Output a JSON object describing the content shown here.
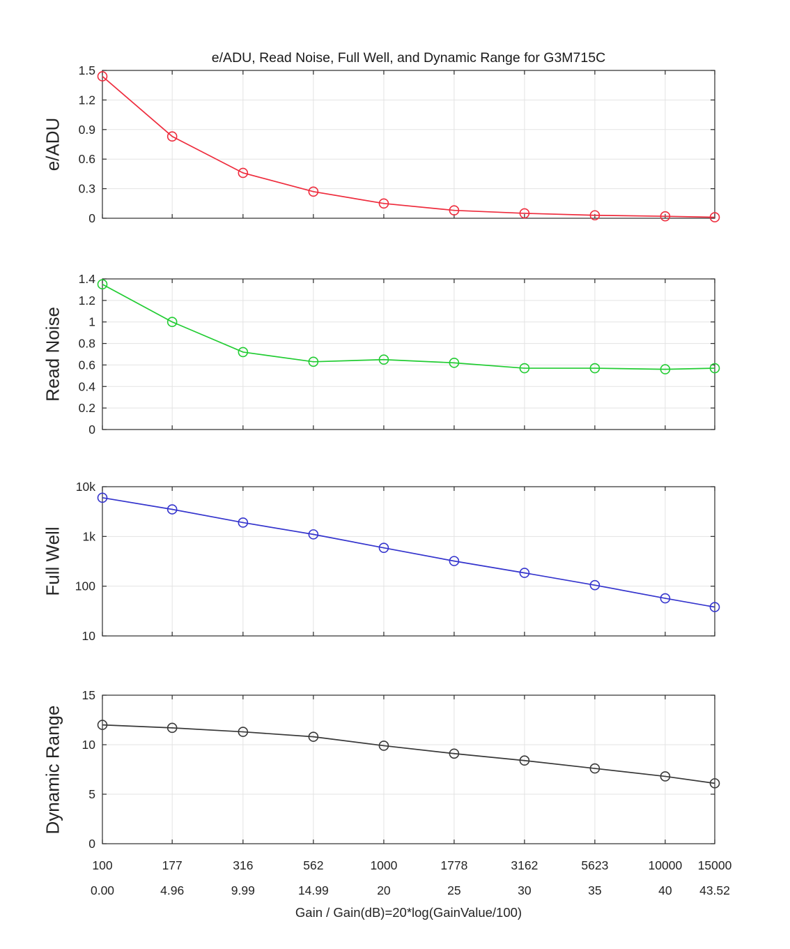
{
  "figure": {
    "background": "#ffffff",
    "axis_color": "#2b2b2b",
    "grid_color": "#e3e3e3",
    "text_color": "#242424"
  },
  "chart_data": {
    "type": "line",
    "title": "e/ADU, Read Noise, Full Well, and Dynamic Range for G3M715C",
    "xlabel": "Gain / Gain(dB)=20*log(GainValue/100)",
    "x_scale": "log",
    "grid": true,
    "legend": "none",
    "x": [
      100,
      177,
      316,
      562,
      1000,
      1778,
      3162,
      5623,
      10000,
      15000
    ],
    "x_tick_labels": [
      "100",
      "177",
      "316",
      "562",
      "1000",
      "1778",
      "3162",
      "5623",
      "10000",
      "15000"
    ],
    "x_tick_labels_db": [
      "0.00",
      "4.96",
      "9.99",
      "14.99",
      "20",
      "25",
      "30",
      "35",
      "40",
      "43.52"
    ],
    "subplots": [
      {
        "name": "e-per-adu",
        "ylabel": "e/ADU",
        "color": "#ee2b3c",
        "marker": "circle",
        "yscale": "linear",
        "ylim": [
          0,
          1.5
        ],
        "yticks": [
          0,
          0.3,
          0.6,
          0.9,
          1.2,
          1.5
        ],
        "ytick_labels": [
          "0",
          "0.3",
          "0.6",
          "0.9",
          "1.2",
          "1.5"
        ],
        "values": [
          1.44,
          0.83,
          0.46,
          0.27,
          0.15,
          0.08,
          0.05,
          0.03,
          0.02,
          0.01
        ]
      },
      {
        "name": "read-noise",
        "ylabel": "Read Noise",
        "color": "#21cc32",
        "marker": "circle",
        "yscale": "linear",
        "ylim": [
          0,
          1.4
        ],
        "yticks": [
          0,
          0.2,
          0.4,
          0.6,
          0.8,
          1,
          1.2,
          1.4
        ],
        "ytick_labels": [
          "0",
          "0.2",
          "0.4",
          "0.6",
          "0.8",
          "1",
          "1.2",
          "1.4"
        ],
        "values": [
          1.35,
          1.0,
          0.72,
          0.63,
          0.65,
          0.62,
          0.57,
          0.57,
          0.56,
          0.57
        ]
      },
      {
        "name": "full-well",
        "ylabel": "Full Well",
        "color": "#3434cd",
        "marker": "circle",
        "yscale": "log",
        "ylim": [
          10,
          10000
        ],
        "yticks": [
          10,
          100,
          1000,
          10000
        ],
        "ytick_labels": [
          "10",
          "100",
          "1k",
          "10k"
        ],
        "values": [
          6000,
          3500,
          1900,
          1100,
          590,
          320,
          185,
          105,
          57,
          38
        ]
      },
      {
        "name": "dynamic-range",
        "ylabel": "Dynamic Range",
        "color": "#383838",
        "marker": "circle",
        "yscale": "linear",
        "ylim": [
          0,
          15
        ],
        "yticks": [
          0,
          5,
          10,
          15
        ],
        "ytick_labels": [
          "0",
          "5",
          "10",
          "15"
        ],
        "values": [
          12.0,
          11.7,
          11.3,
          10.8,
          9.9,
          9.1,
          8.4,
          7.6,
          6.8,
          6.1
        ]
      }
    ]
  }
}
